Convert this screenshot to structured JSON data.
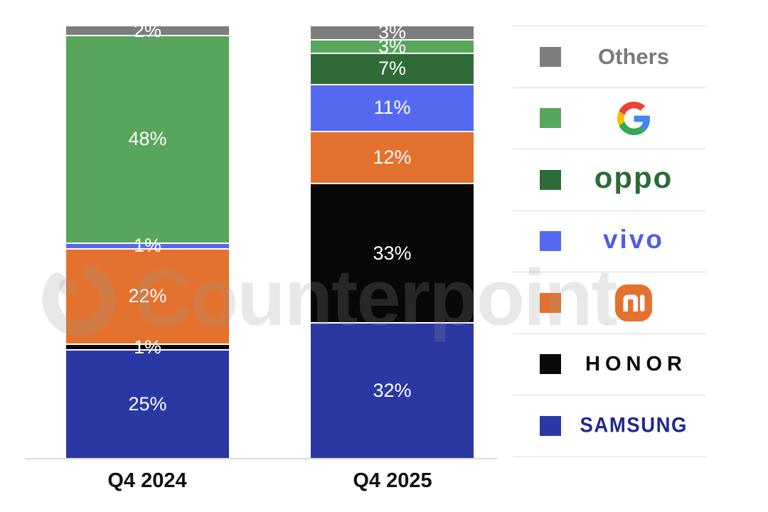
{
  "watermark": {
    "text": "Counterpoint"
  },
  "chart_data": {
    "type": "bar",
    "stacked": true,
    "orientation": "vertical",
    "unit": "%",
    "categories": [
      "Q4 2024",
      "Q4 2025"
    ],
    "series": [
      {
        "name": "SAMSUNG",
        "color": "#2b37a3",
        "values": [
          25,
          32
        ]
      },
      {
        "name": "HONOR",
        "color": "#080808",
        "values": [
          1,
          33
        ]
      },
      {
        "name": "Mi",
        "color": "#e3722e",
        "values": [
          22,
          12
        ]
      },
      {
        "name": "vivo",
        "color": "#5569f0",
        "values": [
          1,
          11
        ]
      },
      {
        "name": "OPPO",
        "color": "#2e6b38",
        "values": [
          0,
          7
        ]
      },
      {
        "name": "Google",
        "color": "#58a55c",
        "values": [
          48,
          3
        ]
      },
      {
        "name": "Others",
        "color": "#7d7d7d",
        "values": [
          2,
          3
        ]
      }
    ],
    "value_labels": "white, centered inside segments, suffix %",
    "legend_position": "right",
    "grid": false,
    "axis_line_color": "#dcdcdc"
  },
  "legend": {
    "items": [
      {
        "id": "others",
        "label": "Others",
        "type": "text",
        "style": "others",
        "swatch": "#7d7d7d"
      },
      {
        "id": "google",
        "label": "",
        "type": "google-logo",
        "style": "google",
        "swatch": "#58a55c"
      },
      {
        "id": "oppo",
        "label": "oppo",
        "type": "text",
        "style": "oppo",
        "swatch": "#2e6b38"
      },
      {
        "id": "vivo",
        "label": "vivo",
        "type": "text",
        "style": "vivo",
        "swatch": "#5569f0"
      },
      {
        "id": "mi",
        "label": "",
        "type": "mi-logo",
        "style": "mi",
        "swatch": "#e3722e"
      },
      {
        "id": "honor",
        "label": "HONOR",
        "type": "text",
        "style": "honor",
        "swatch": "#0a0a0a"
      },
      {
        "id": "samsung",
        "label": "SAMSUNG",
        "type": "text",
        "style": "samsung",
        "swatch": "#2b37a3"
      }
    ]
  },
  "icons": {
    "google": "google-g-logo",
    "mi": "xiaomi-mi-logo",
    "watermark": "counterpoint-logo"
  }
}
